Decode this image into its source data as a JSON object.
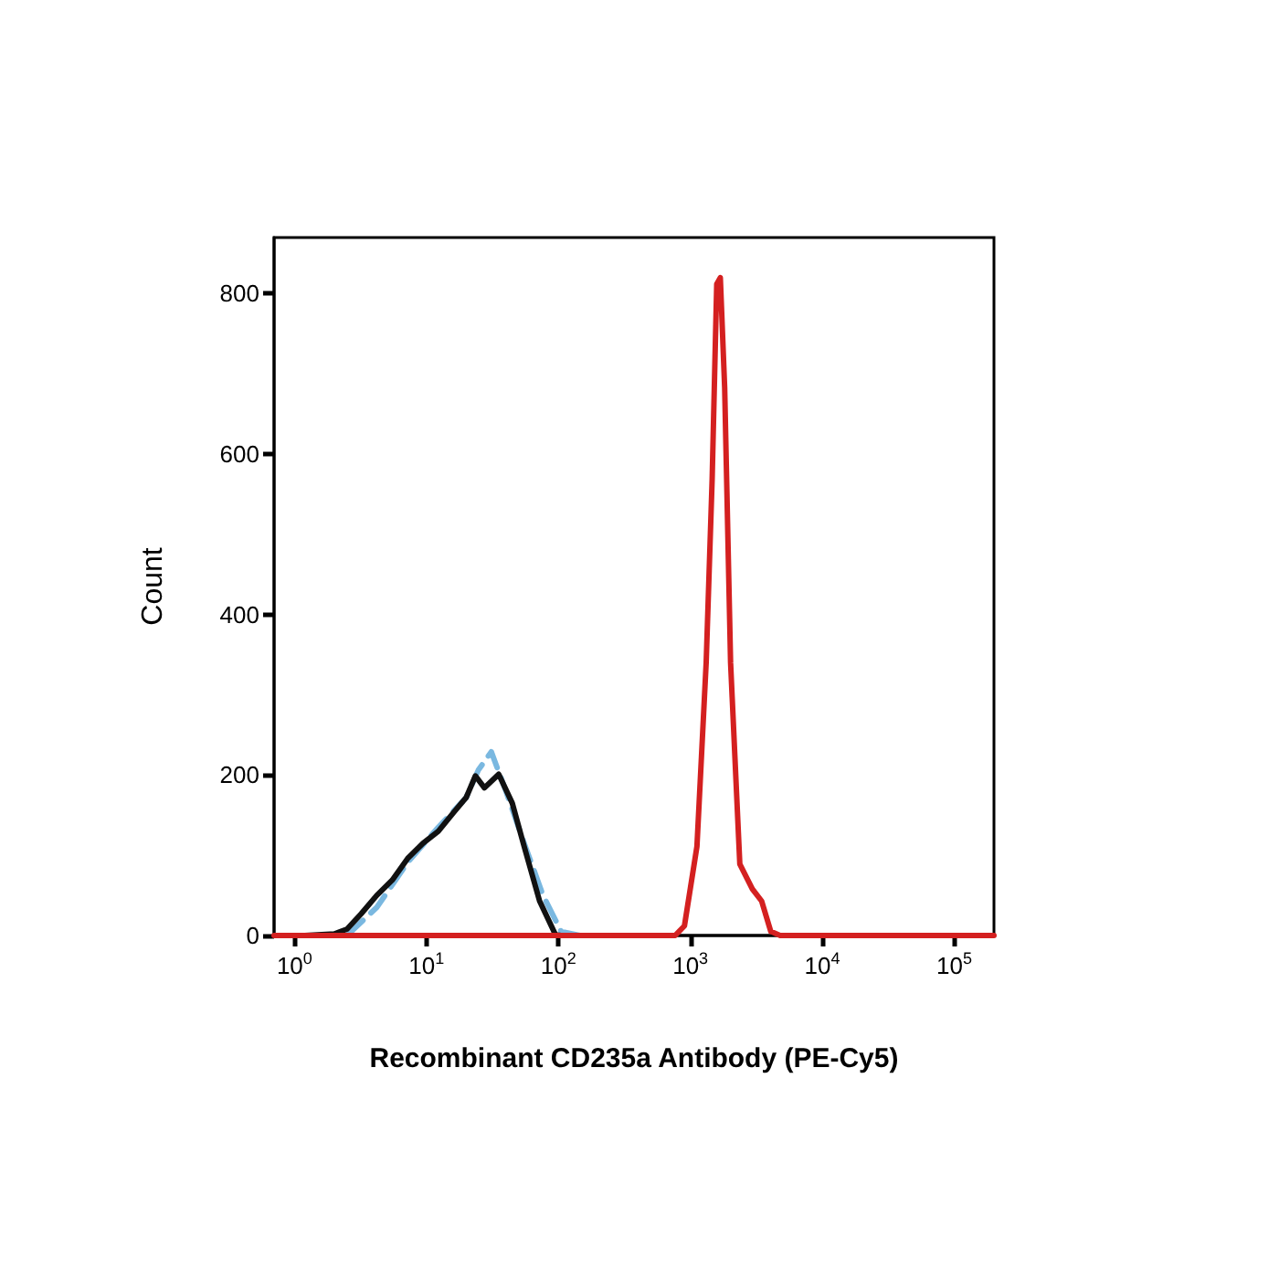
{
  "chart_data": {
    "type": "line",
    "xlabel": "Recombinant CD235a Antibody (PE-Cy5)",
    "ylabel": "Count",
    "log": "x",
    "xlim": [
      0.7,
      200000
    ],
    "xticks": [
      {
        "value": 1,
        "label": "10$^{0}$"
      },
      {
        "value": 10,
        "label": "10$^{1}$"
      },
      {
        "value": 100,
        "label": "10$^{2}$"
      },
      {
        "value": 1000,
        "label": "10$^{3}$"
      },
      {
        "value": 10000,
        "label": "10$^{4}$"
      },
      {
        "value": 100000,
        "label": "10$^{5}$"
      }
    ],
    "ylim": [
      0,
      870
    ],
    "yticks": [
      0,
      200,
      400,
      600,
      800
    ],
    "grid": false,
    "marker": "none",
    "series": [
      {
        "color": "#7ab8e0",
        "line_style": "dashed",
        "x": [
          2.5,
          4.2,
          7.2,
          12.3,
          20,
          24.7,
          31,
          40,
          55,
          76.5,
          105,
          145
        ],
        "values": [
          0,
          35,
          91,
          135,
          172,
          206,
          229,
          180,
          115,
          50,
          5,
          0
        ]
      },
      {
        "color": "#111111",
        "line_style": "solid",
        "x": [
          1.2,
          2.0,
          2.5,
          3.2,
          4.2,
          5.5,
          7.2,
          9.4,
          12.3,
          16,
          20,
          23.5,
          27.5,
          35.3,
          44.7,
          55,
          72,
          95,
          105
        ],
        "values": [
          0,
          2,
          8,
          27,
          50,
          69,
          96,
          115,
          130,
          153,
          172,
          199,
          184,
          201,
          165,
          111,
          43,
          1,
          0
        ]
      },
      {
        "color": "#d42020",
        "line_style": "solid",
        "x": [
          0.7,
          767,
          902,
          1122,
          1318,
          1463,
          1585,
          1687,
          1820,
          2018,
          2371,
          2951,
          3467,
          4070,
          4790,
          200000
        ],
        "values": [
          0,
          0,
          12,
          111,
          340,
          569,
          812,
          820,
          683,
          340,
          89,
          58,
          43,
          5,
          0,
          0
        ]
      }
    ]
  }
}
